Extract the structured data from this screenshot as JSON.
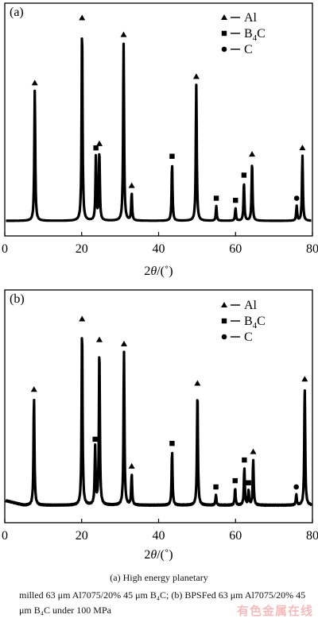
{
  "chart_data": [
    {
      "type": "line",
      "panel_label": "(a)",
      "xlabel": "2θ/(°)",
      "xlim": [
        0,
        80
      ],
      "xticks": [
        0,
        20,
        40,
        60,
        80
      ],
      "grid": false,
      "legend": {
        "placement": "top-right",
        "entries": [
          {
            "marker": "triangle",
            "label": "Al"
          },
          {
            "marker": "square",
            "label": "B4C"
          },
          {
            "marker": "circle",
            "label": "C"
          }
        ]
      },
      "peaks": [
        {
          "x": 7.8,
          "y": 0.62,
          "phase": "Al"
        },
        {
          "x": 20.1,
          "y": 0.93,
          "phase": "Al"
        },
        {
          "x": 23.7,
          "y": 0.31,
          "phase": "B4C"
        },
        {
          "x": 24.6,
          "y": 0.33,
          "phase": "Al"
        },
        {
          "x": 33.0,
          "y": 0.13,
          "phase": "Al"
        },
        {
          "x": 30.9,
          "y": 0.85,
          "phase": "Al"
        },
        {
          "x": 43.5,
          "y": 0.27,
          "phase": "B4C"
        },
        {
          "x": 49.8,
          "y": 0.65,
          "phase": "Al"
        },
        {
          "x": 55.0,
          "y": 0.07,
          "phase": "B4C"
        },
        {
          "x": 60.0,
          "y": 0.06,
          "phase": "B4C"
        },
        {
          "x": 62.2,
          "y": 0.18,
          "phase": "B4C"
        },
        {
          "x": 64.3,
          "y": 0.28,
          "phase": "Al"
        },
        {
          "x": 75.9,
          "y": 0.07,
          "phase": "C"
        },
        {
          "x": 77.4,
          "y": 0.31,
          "phase": "Al"
        }
      ]
    },
    {
      "type": "line",
      "panel_label": "(b)",
      "xlabel": "2θ/(°)",
      "xlim": [
        0,
        80
      ],
      "xticks": [
        0,
        20,
        40,
        60,
        80
      ],
      "grid": false,
      "legend": {
        "placement": "top-right",
        "entries": [
          {
            "marker": "triangle",
            "label": "Al"
          },
          {
            "marker": "square",
            "label": "B4C"
          },
          {
            "marker": "circle",
            "label": "C"
          }
        ]
      },
      "peaks": [
        {
          "x": 7.6,
          "y": 0.52,
          "phase": "Al"
        },
        {
          "x": 20.1,
          "y": 0.86,
          "phase": "Al"
        },
        {
          "x": 23.5,
          "y": 0.28,
          "phase": "B4C"
        },
        {
          "x": 24.6,
          "y": 0.76,
          "phase": "Al"
        },
        {
          "x": 31.0,
          "y": 0.74,
          "phase": "Al"
        },
        {
          "x": 33.0,
          "y": 0.15,
          "phase": "Al"
        },
        {
          "x": 43.5,
          "y": 0.26,
          "phase": "B4C"
        },
        {
          "x": 50.1,
          "y": 0.55,
          "phase": "Al"
        },
        {
          "x": 54.9,
          "y": 0.05,
          "phase": "B4C"
        },
        {
          "x": 59.9,
          "y": 0.08,
          "phase": "B4C"
        },
        {
          "x": 62.3,
          "y": 0.18,
          "phase": "B4C"
        },
        {
          "x": 63.4,
          "y": 0.07,
          "phase": "B4C"
        },
        {
          "x": 64.6,
          "y": 0.22,
          "phase": "Al"
        },
        {
          "x": 75.8,
          "y": 0.05,
          "phase": "C"
        },
        {
          "x": 78.0,
          "y": 0.57,
          "phase": "Al"
        }
      ]
    }
  ],
  "legend_labels": {
    "al": "Al",
    "b4c_main": "B",
    "b4c_sub": "4",
    "b4c_tail": "C",
    "c": "C"
  },
  "axis_label_text": {
    "two": "2",
    "theta": "θ",
    "rest": "/(˚)"
  },
  "caption": {
    "line1": "(a)  High  energy  planetary",
    "line2": "milled 63 μm Al7075/20% 45 μm B₄C; (b) BPSFed 63 μm Al7075/20% 45 μm B₄C under 100 MPa"
  },
  "watermark": "有色金属在线"
}
